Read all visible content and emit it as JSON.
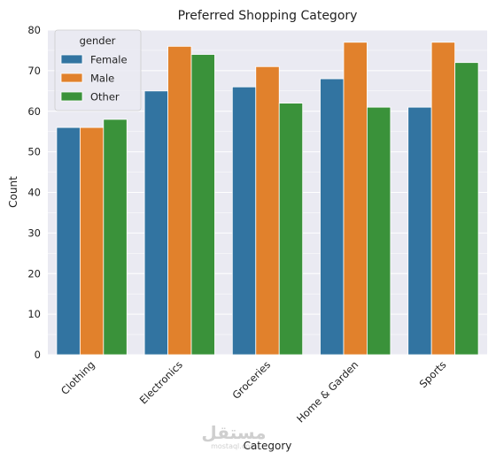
{
  "chart_data": {
    "type": "bar",
    "title": "Preferred Shopping Category",
    "xlabel": "Category",
    "ylabel": "Count",
    "categories": [
      "Clothing",
      "Electronics",
      "Groceries",
      "Home & Garden",
      "Sports"
    ],
    "series": [
      {
        "name": "Female",
        "color": "#3274a1",
        "values": [
          56,
          65,
          66,
          68,
          61
        ]
      },
      {
        "name": "Male",
        "color": "#e1812c",
        "values": [
          56,
          76,
          71,
          77,
          77
        ]
      },
      {
        "name": "Other",
        "color": "#3a923a",
        "values": [
          58,
          74,
          62,
          61,
          72
        ]
      }
    ],
    "ylim": [
      0,
      80
    ],
    "yticks": [
      0,
      10,
      20,
      30,
      40,
      50,
      60,
      70,
      80
    ],
    "grid": true,
    "background": "#eaeaf2",
    "legend": {
      "title": "gender",
      "placement": "top-left"
    }
  },
  "watermark": {
    "text": "مستقل",
    "subtext": "mostaql.com"
  }
}
